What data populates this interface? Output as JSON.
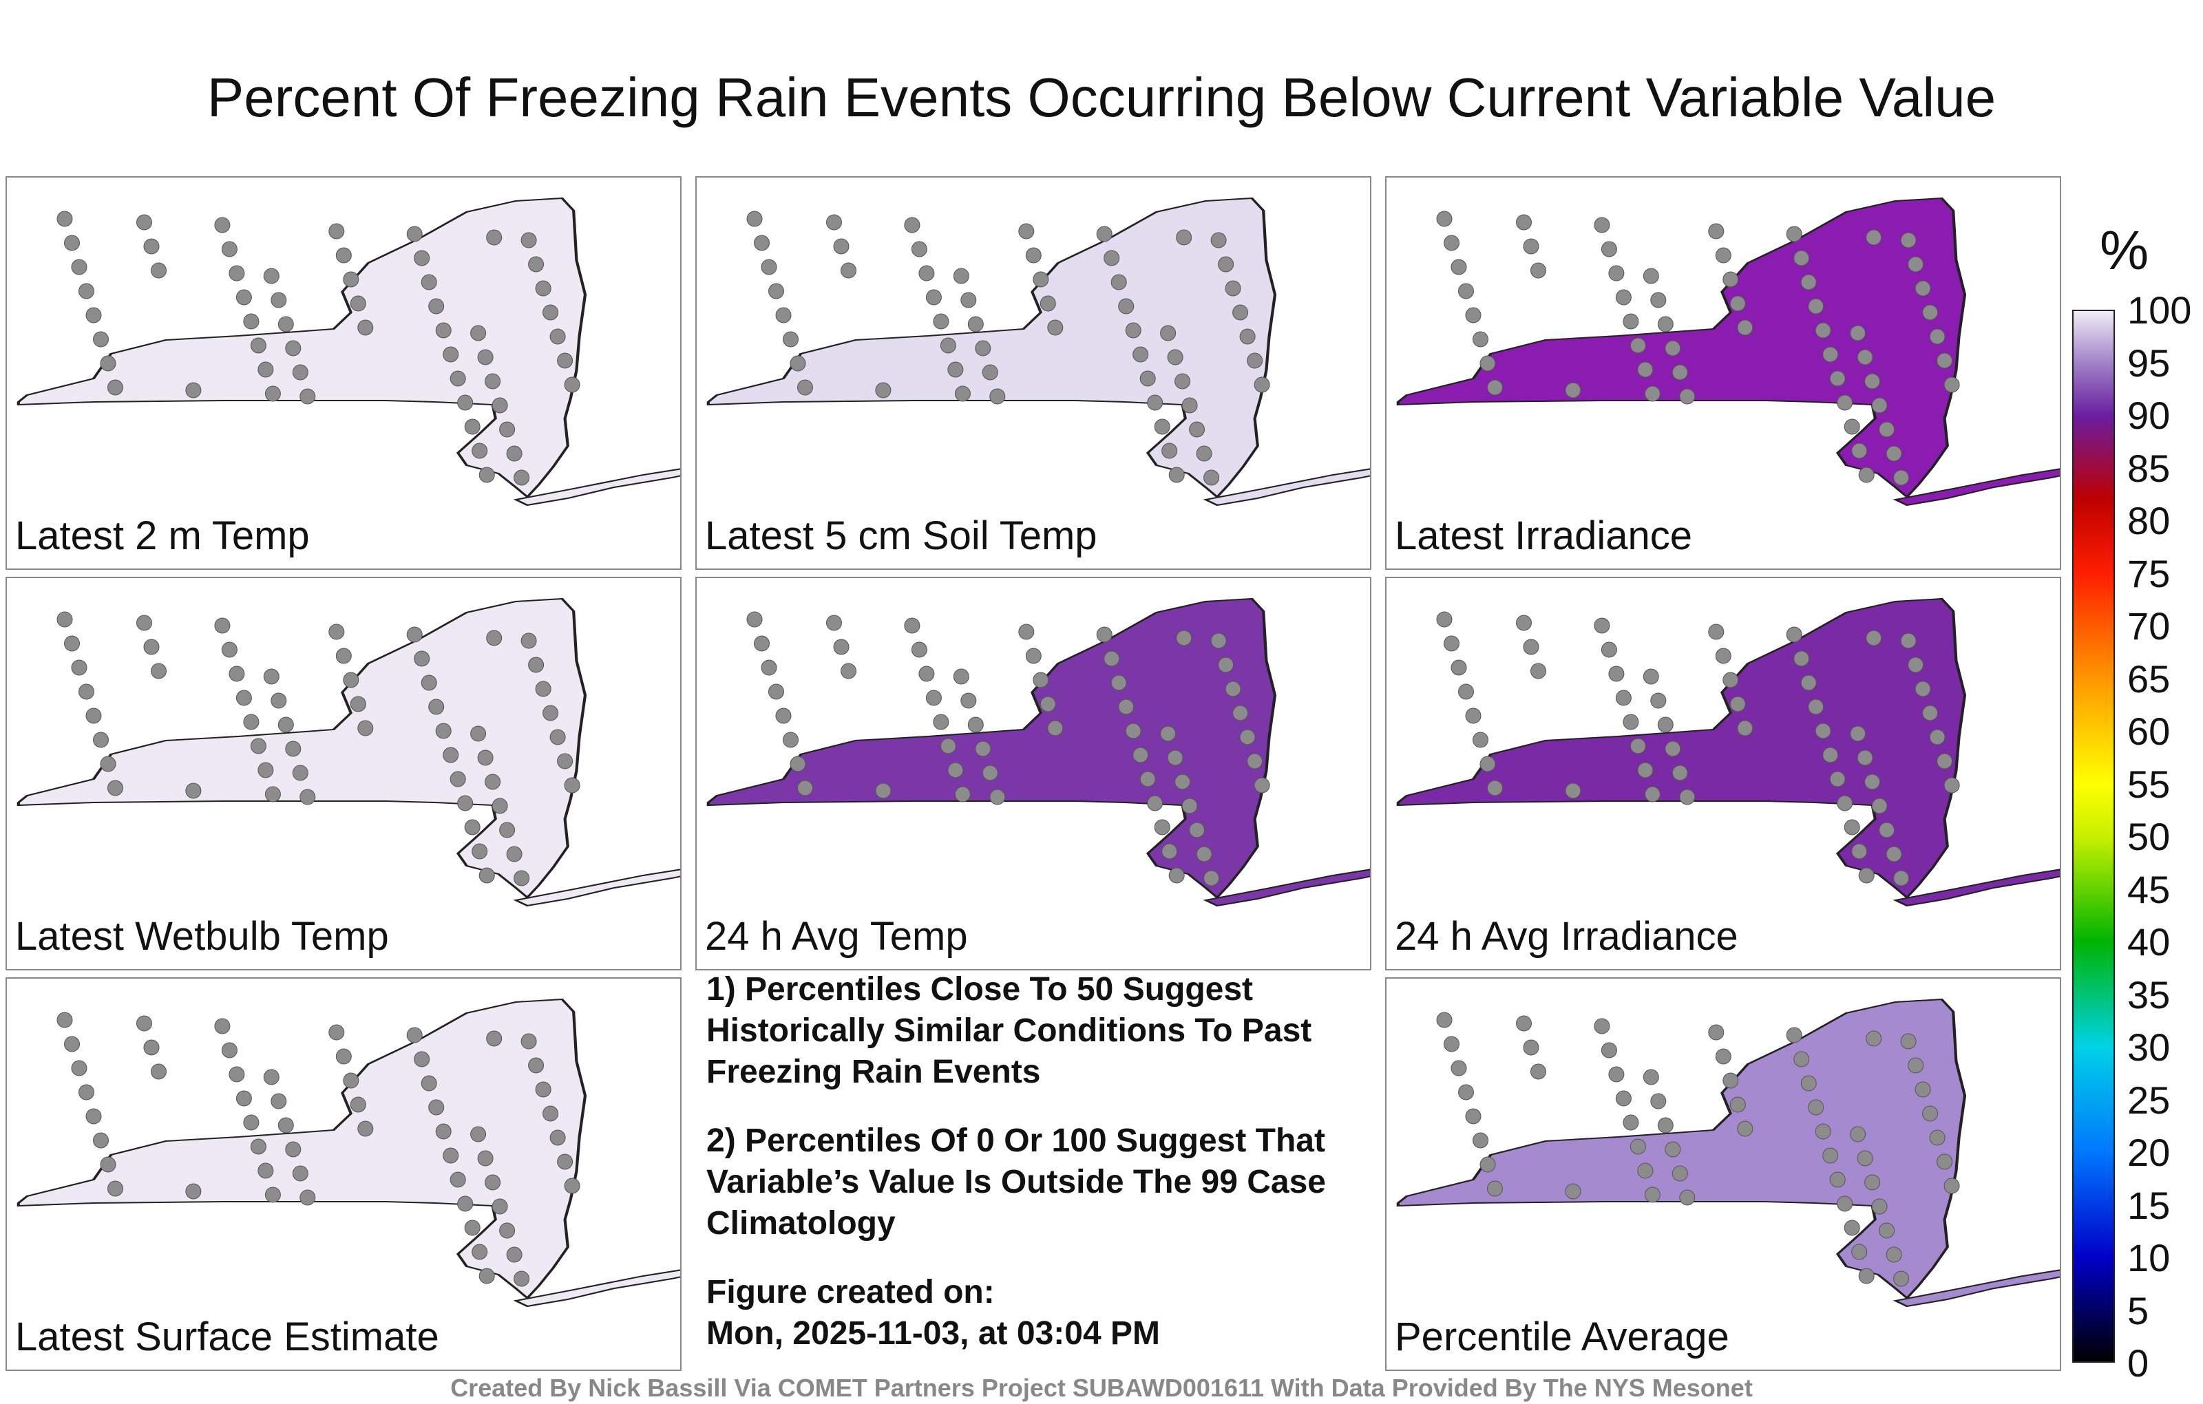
{
  "title": "Percent Of Freezing Rain Events Occurring Below Current Variable Value",
  "panels": [
    {
      "id": "p1",
      "label": "Latest 2 m Temp"
    },
    {
      "id": "p2",
      "label": "Latest 5 cm Soil Temp"
    },
    {
      "id": "p3",
      "label": "Latest Irradiance"
    },
    {
      "id": "p4",
      "label": "Latest Wetbulb Temp"
    },
    {
      "id": "p5",
      "label": "24 h Avg Temp"
    },
    {
      "id": "p6",
      "label": "24 h Avg Irradiance"
    },
    {
      "id": "p7",
      "label": "Latest Surface Estimate"
    },
    {
      "id": "p9",
      "label": "Percentile Average"
    }
  ],
  "notes": {
    "note1": "1) Percentiles Close To 50 Suggest Historically Similar Conditions To Past Freezing Rain Events",
    "note2": "2) Percentiles Of 0 Or 100 Suggest That Variable’s Value Is Outside The 99 Case Climatology",
    "created_label": "Figure created on:",
    "created_value": "Mon, 2025-11-03, at 03:04 PM"
  },
  "colorbar": {
    "unit": "%",
    "ticks": [
      "100",
      "95",
      "90",
      "85",
      "80",
      "75",
      "70",
      "65",
      "60",
      "55",
      "50",
      "45",
      "40",
      "35",
      "30",
      "25",
      "20",
      "15",
      "10",
      "5",
      "0"
    ]
  },
  "credit": "Created By Nick Bassill Via COMET Partners Project SUBAWD001611 With Data Provided By The NYS Mesonet"
}
